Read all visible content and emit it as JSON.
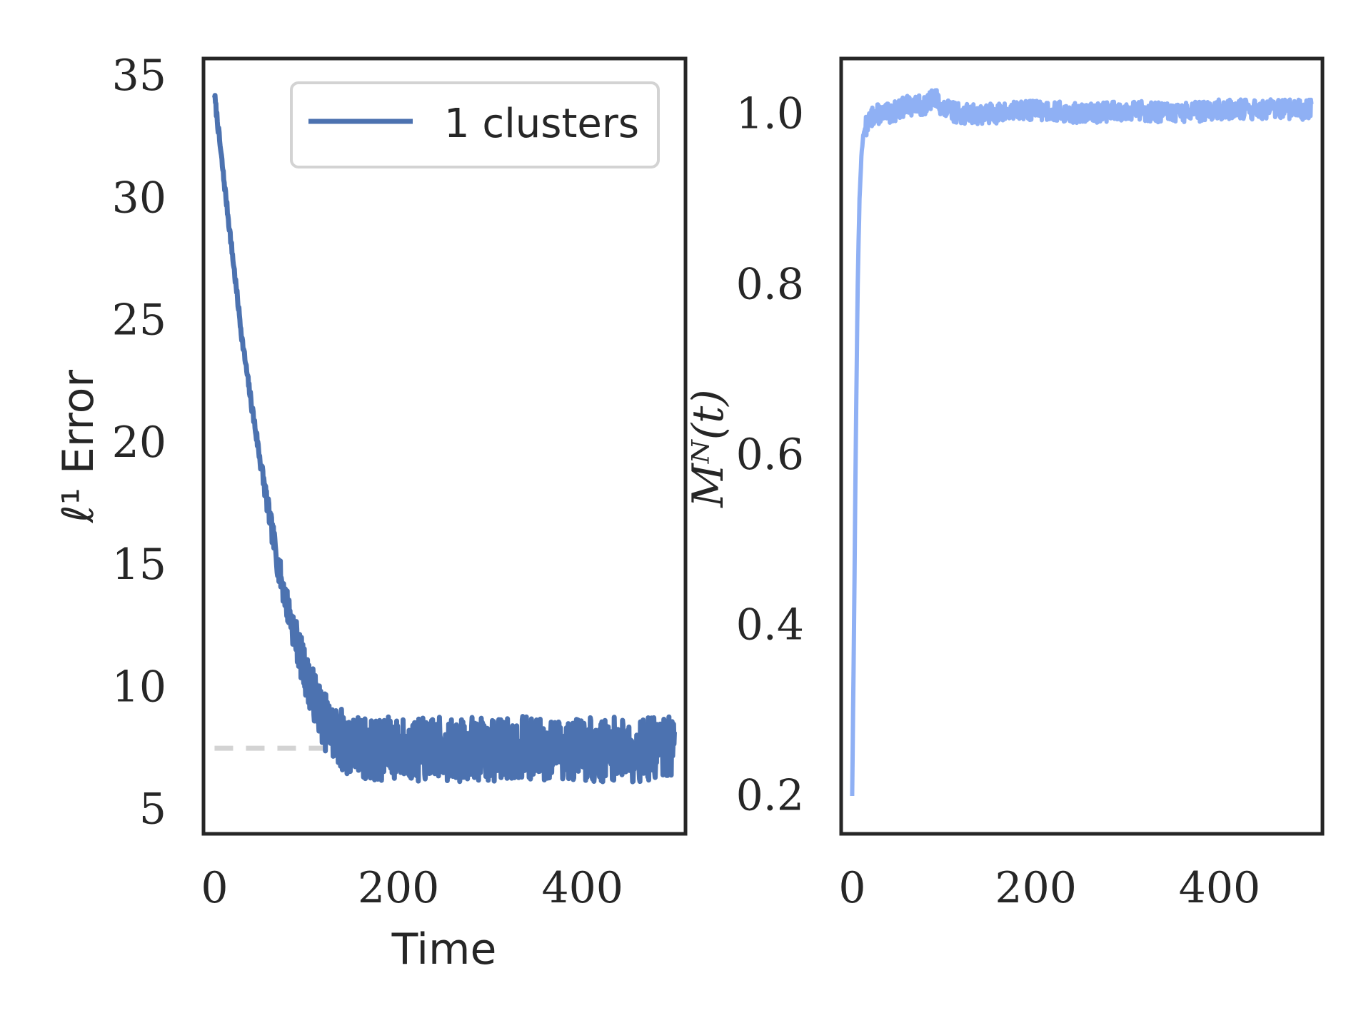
{
  "colors": {
    "series_left": "#4c72b0",
    "series_right": "#8fb0f4",
    "reference": "#d3d3d3",
    "axes": "#262626"
  },
  "chart_data": [
    {
      "type": "line",
      "xlabel": "Time",
      "ylabel": "ℓ¹ Error",
      "xlim": [
        -12,
        512
      ],
      "ylim": [
        4,
        35.7
      ],
      "xticks": [
        0,
        200,
        400
      ],
      "xtick_labels": [
        "0",
        "200",
        "400"
      ],
      "yticks": [
        5,
        10,
        15,
        20,
        25,
        30,
        35
      ],
      "ytick_labels": [
        "5",
        "10",
        "15",
        "20",
        "25",
        "30",
        "35"
      ],
      "grid": false,
      "legend_position": "top-right",
      "series": [
        {
          "name": "1 clusters",
          "x": [
            0,
            10,
            20,
            30,
            40,
            50,
            60,
            70,
            80,
            90,
            100,
            110,
            120,
            130,
            140,
            150,
            160,
            170,
            180,
            190,
            200,
            220,
            240,
            260,
            280,
            300,
            320,
            340,
            360,
            380,
            400,
            420,
            440,
            460,
            480,
            500
          ],
          "y": [
            34.2,
            30.8,
            27.5,
            24.2,
            21.6,
            19.2,
            16.9,
            14.8,
            13.2,
            11.8,
            10.4,
            9.5,
            8.6,
            8.1,
            7.8,
            7.6,
            7.5,
            7.5,
            7.4,
            7.5,
            7.5,
            7.4,
            7.5,
            7.4,
            7.5,
            7.4,
            7.5,
            7.5,
            7.4,
            7.5,
            7.5,
            7.4,
            7.5,
            7.4,
            7.5,
            7.5
          ],
          "noise_band": 1.3
        }
      ],
      "reference_line": {
        "y": 7.5,
        "style": "dashed"
      }
    },
    {
      "type": "line",
      "xlabel": "",
      "ylabel": "Mᴺ(t)",
      "xlim": [
        -12,
        512
      ],
      "ylim": [
        0.155,
        1.065
      ],
      "xticks": [
        0,
        200,
        400
      ],
      "xtick_labels": [
        "0",
        "200",
        "400"
      ],
      "yticks": [
        0.2,
        0.4,
        0.6,
        0.8,
        1.0
      ],
      "ytick_labels": [
        "0.2",
        "0.4",
        "0.6",
        "0.8",
        "1.0"
      ],
      "grid": false,
      "series": [
        {
          "x": [
            0,
            2,
            4,
            6,
            8,
            10,
            12,
            15,
            20,
            25,
            30,
            40,
            50,
            60,
            80,
            90,
            100,
            120,
            150,
            200,
            250,
            300,
            350,
            400,
            450,
            500
          ],
          "y": [
            0.2,
            0.4,
            0.62,
            0.8,
            0.9,
            0.95,
            0.975,
            0.985,
            0.995,
            1.0,
            1.0,
            1.0,
            1.005,
            1.01,
            1.01,
            1.02,
            1.005,
            1.0,
            1.0,
            1.005,
            1.0,
            1.005,
            1.0,
            1.005,
            1.005,
            1.005
          ],
          "noise_band": 0.012
        }
      ]
    }
  ]
}
